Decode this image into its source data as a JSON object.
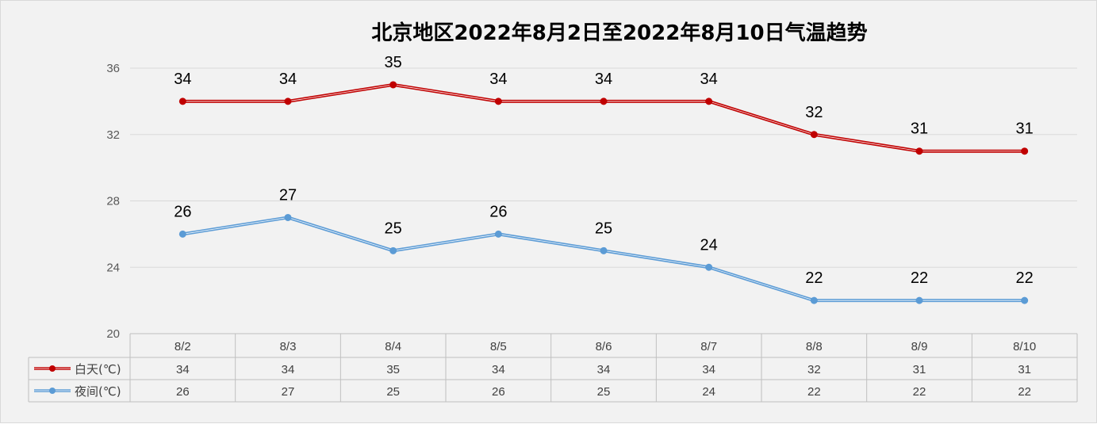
{
  "chart_data": {
    "type": "line",
    "title": "北京地区2022年8月2日至2022年8月10日气温趋势",
    "categories": [
      "8/2",
      "8/3",
      "8/4",
      "8/5",
      "8/6",
      "8/7",
      "8/8",
      "8/9",
      "8/10"
    ],
    "series": [
      {
        "name": "白天(℃)",
        "color": "#c00000",
        "values": [
          34,
          34,
          35,
          34,
          34,
          34,
          32,
          31,
          31
        ]
      },
      {
        "name": "夜间(℃)",
        "color": "#5b9bd5",
        "values": [
          26,
          27,
          25,
          26,
          25,
          24,
          22,
          22,
          22
        ]
      }
    ],
    "ylim": [
      20,
      36
    ],
    "yticks": [
      20,
      24,
      28,
      32,
      36
    ],
    "grid": true,
    "data_labels": true,
    "legend": "data-table-left"
  }
}
